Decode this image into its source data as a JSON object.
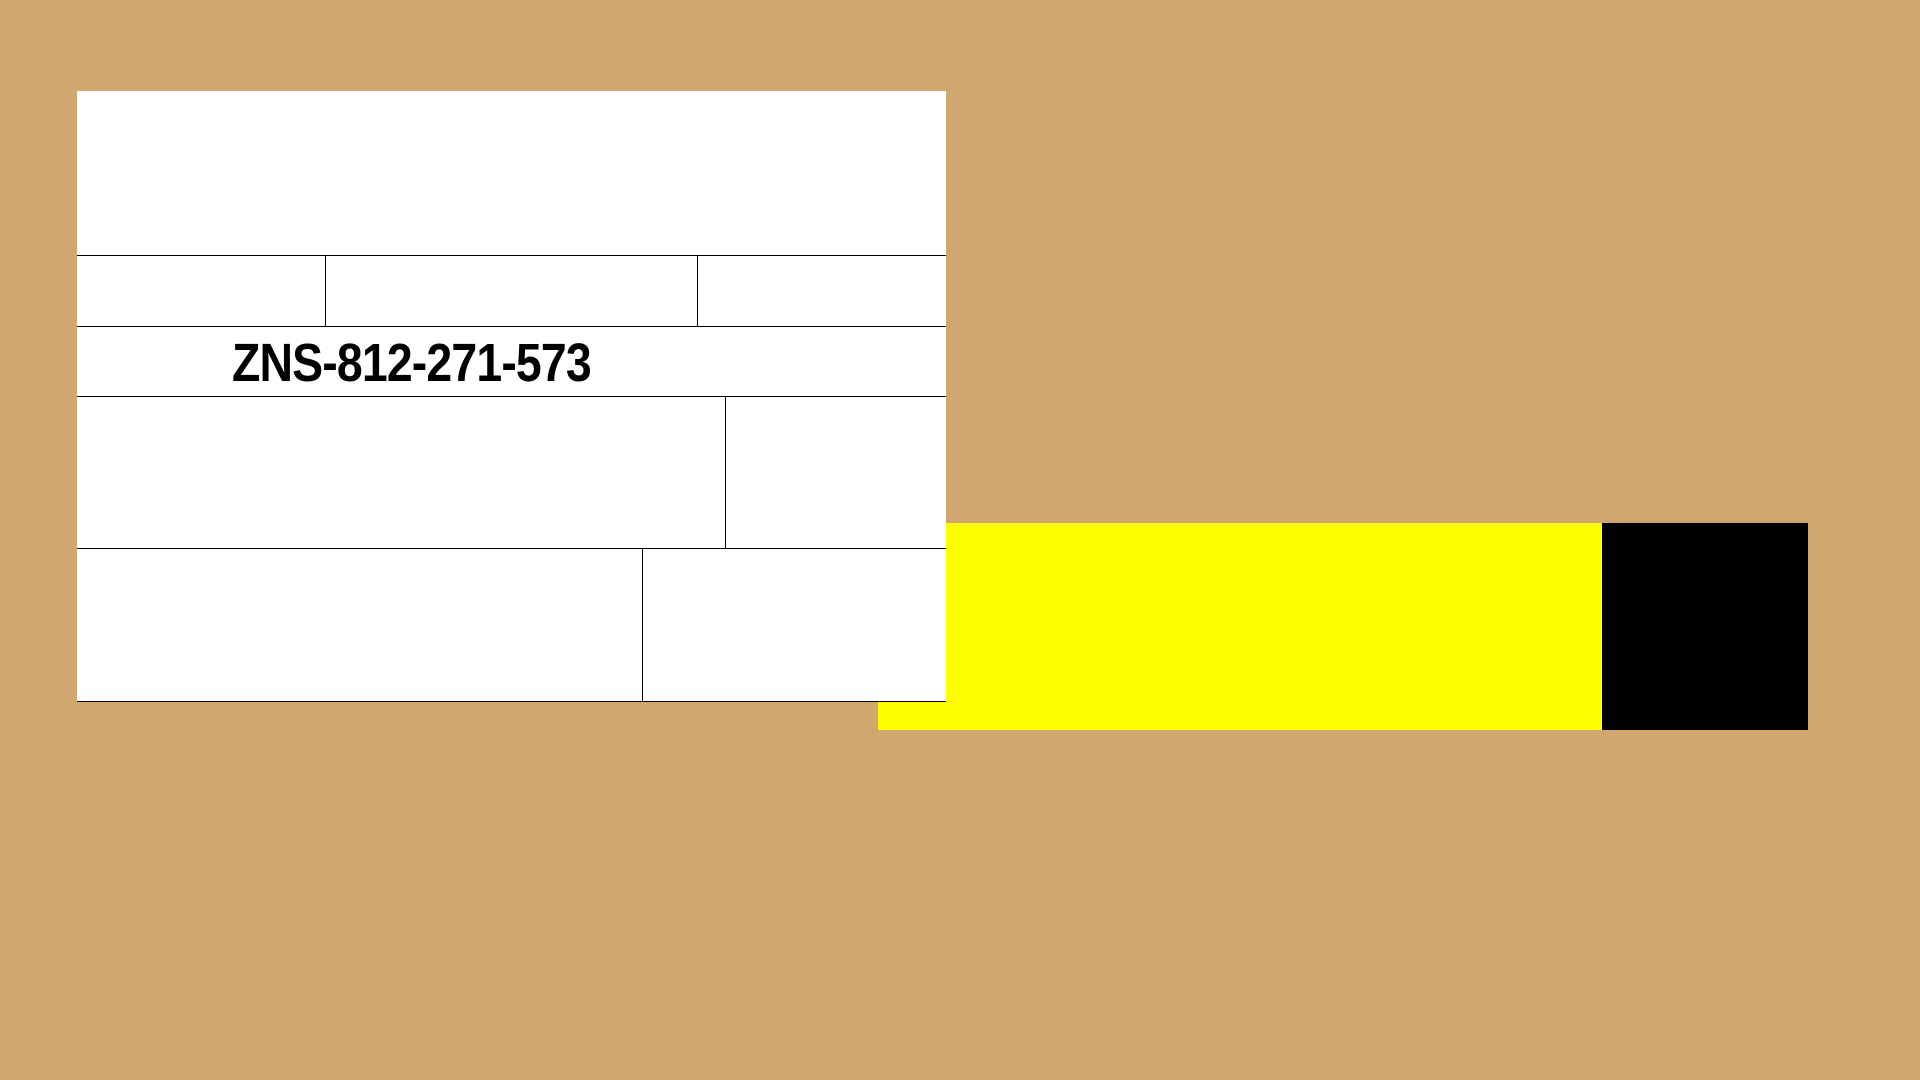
{
  "colors": {
    "background": "#d0a86f",
    "label": "#ffffff",
    "tape_yellow": "#ffff00",
    "tape_black": "#000000"
  },
  "label": {
    "tracking_number": "ZNS-812-271-573"
  }
}
